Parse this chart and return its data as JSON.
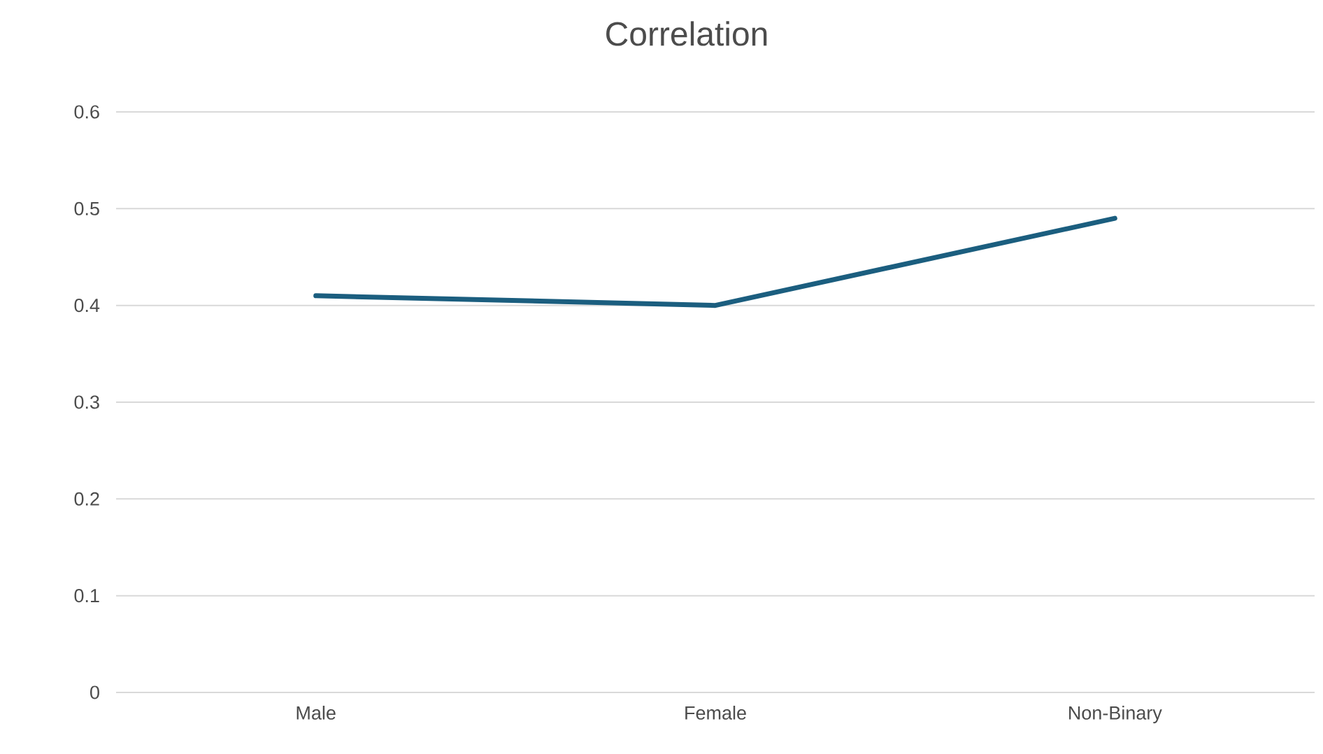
{
  "chart_data": {
    "type": "line",
    "title": "Correlation",
    "categories": [
      "Male",
      "Female",
      "Non-Binary"
    ],
    "series": [
      {
        "color": "#1b5e7f",
        "values": [
          0.41,
          0.4,
          0.49
        ]
      }
    ],
    "ylim": [
      0,
      0.6
    ],
    "yticks": [
      0,
      0.1,
      0.2,
      0.3,
      0.4,
      0.5,
      0.6
    ],
    "grid": "y"
  }
}
